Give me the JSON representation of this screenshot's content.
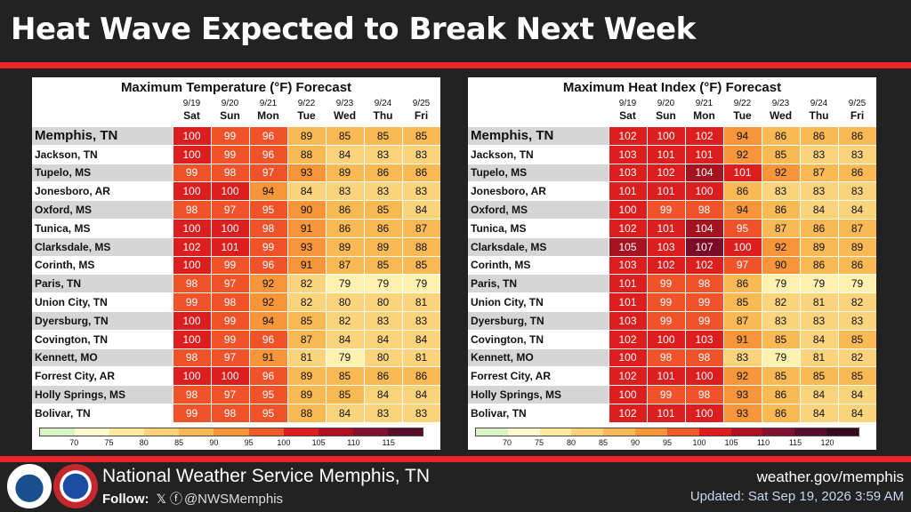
{
  "title": "Heat Wave Expected to Break Next Week",
  "days": [
    {
      "date": "9/19",
      "dow": "Sat"
    },
    {
      "date": "9/20",
      "dow": "Sun"
    },
    {
      "date": "9/21",
      "dow": "Mon"
    },
    {
      "date": "9/22",
      "dow": "Tue"
    },
    {
      "date": "9/23",
      "dow": "Wed"
    },
    {
      "date": "9/24",
      "dow": "Thu"
    },
    {
      "date": "9/25",
      "dow": "Fri"
    }
  ],
  "cities": [
    "Memphis, TN",
    "Jackson, TN",
    "Tupelo, MS",
    "Jonesboro, AR",
    "Oxford, MS",
    "Tunica, MS",
    "Clarksdale, MS",
    "Corinth, MS",
    "Paris, TN",
    "Union City, TN",
    "Dyersburg, TN",
    "Covington, TN",
    "Kennett, MO",
    "Forrest City, AR",
    "Holly Springs, MS",
    "Bolivar, TN"
  ],
  "tables": [
    {
      "title": "Maximum Temperature (°F) Forecast",
      "values": [
        [
          100,
          99,
          96,
          89,
          85,
          85,
          85
        ],
        [
          100,
          99,
          96,
          88,
          84,
          83,
          83
        ],
        [
          99,
          98,
          97,
          93,
          89,
          86,
          86
        ],
        [
          100,
          100,
          94,
          84,
          83,
          83,
          83
        ],
        [
          98,
          97,
          95,
          90,
          86,
          85,
          84
        ],
        [
          100,
          100,
          98,
          91,
          86,
          86,
          87
        ],
        [
          102,
          101,
          99,
          93,
          89,
          89,
          88
        ],
        [
          100,
          99,
          96,
          91,
          87,
          85,
          85
        ],
        [
          98,
          97,
          92,
          82,
          79,
          79,
          79
        ],
        [
          99,
          98,
          92,
          82,
          80,
          80,
          81
        ],
        [
          100,
          99,
          94,
          85,
          82,
          83,
          83
        ],
        [
          100,
          99,
          96,
          87,
          84,
          84,
          84
        ],
        [
          98,
          97,
          91,
          81,
          79,
          80,
          81
        ],
        [
          100,
          100,
          96,
          89,
          85,
          86,
          86
        ],
        [
          98,
          97,
          95,
          89,
          85,
          84,
          84
        ],
        [
          99,
          98,
          95,
          88,
          84,
          83,
          83
        ]
      ],
      "legend_ticks": [
        "70",
        "75",
        "80",
        "85",
        "90",
        "95",
        "100",
        "105",
        "110",
        "115"
      ]
    },
    {
      "title": "Maximum Heat Index (°F) Forecast",
      "values": [
        [
          102,
          100,
          102,
          94,
          86,
          86,
          86
        ],
        [
          103,
          101,
          101,
          92,
          85,
          83,
          83
        ],
        [
          103,
          102,
          104,
          101,
          92,
          87,
          86
        ],
        [
          101,
          101,
          100,
          86,
          83,
          83,
          83
        ],
        [
          100,
          99,
          98,
          94,
          86,
          84,
          84
        ],
        [
          102,
          101,
          104,
          95,
          87,
          86,
          87
        ],
        [
          105,
          103,
          107,
          100,
          92,
          89,
          89
        ],
        [
          103,
          102,
          102,
          97,
          90,
          86,
          86
        ],
        [
          101,
          99,
          98,
          86,
          79,
          79,
          79
        ],
        [
          101,
          99,
          99,
          85,
          82,
          81,
          82
        ],
        [
          103,
          99,
          99,
          87,
          83,
          83,
          83
        ],
        [
          102,
          100,
          103,
          91,
          85,
          84,
          85
        ],
        [
          100,
          98,
          98,
          83,
          79,
          81,
          82
        ],
        [
          102,
          101,
          100,
          92,
          85,
          85,
          85
        ],
        [
          100,
          99,
          98,
          93,
          86,
          84,
          84
        ],
        [
          102,
          101,
          100,
          93,
          86,
          84,
          84
        ]
      ],
      "legend_ticks": [
        "70",
        "75",
        "80",
        "85",
        "90",
        "95",
        "100",
        "105",
        "110",
        "115",
        "120"
      ]
    }
  ],
  "legend_colors": [
    "#d9f2c6",
    "#fffacd",
    "#ffeaa0",
    "#fcd27a",
    "#f9b955",
    "#f6953a",
    "#f05a28",
    "#dc1e1e",
    "#b01020",
    "#821030",
    "#5a0c2c",
    "#380a20"
  ],
  "footer": {
    "org": "National Weather Service Memphis, TN",
    "follow_label": "Follow:",
    "handle": "@NWSMemphis",
    "url": "weather.gov/memphis",
    "updated": "Updated: Sat Sep 19, 2026 3:59 AM"
  }
}
